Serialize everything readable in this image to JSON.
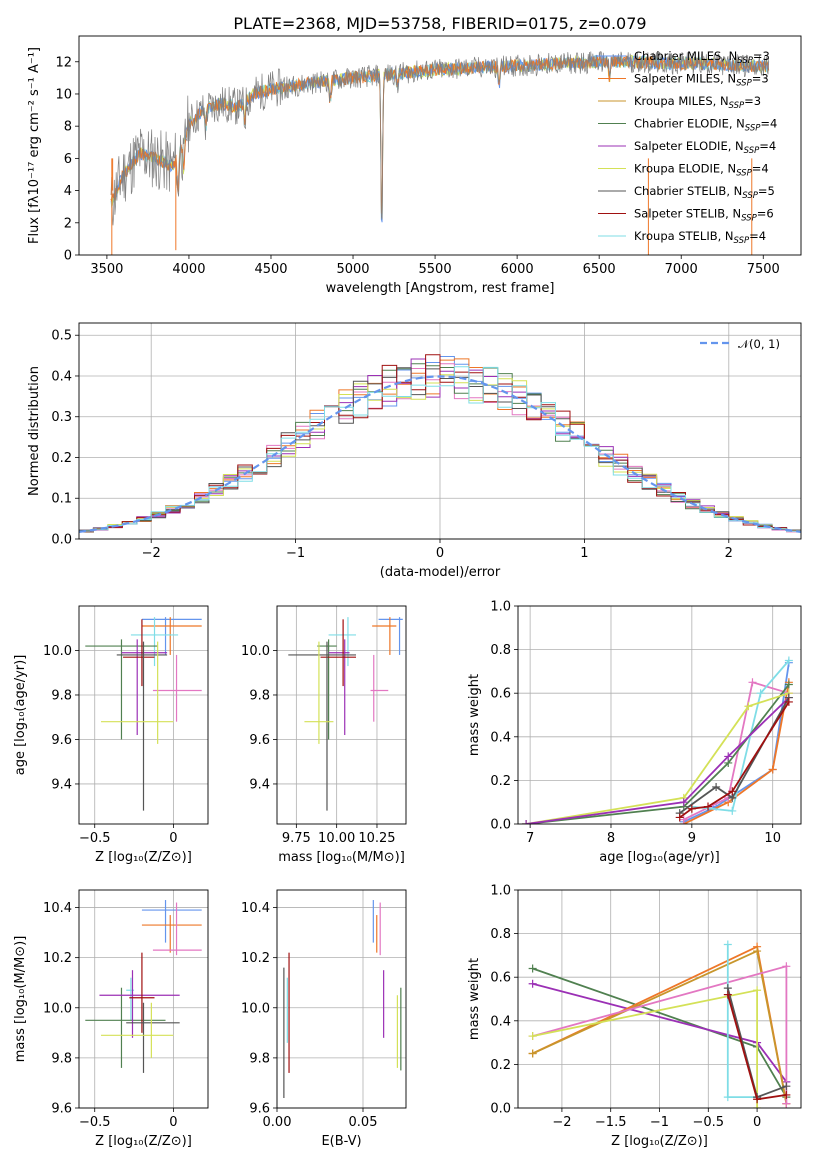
{
  "figure_title": "PLATE=2368, MJD=53758, FIBERID=0175, z=0.079",
  "colors": {
    "Chabrier MILES": "#6495ed",
    "Salpeter MILES": "#ee7728",
    "Kroupa MILES": "#c8962c",
    "Chabrier ELODIE": "#508050",
    "Salpeter ELODIE": "#9b30b5",
    "Kroupa ELODIE": "#d4e157",
    "Chabrier STELIB": "#555555",
    "Salpeter STELIB": "#a01010",
    "Kroupa STELIB": "#7fdde6",
    "pink": "#e377c2",
    "normal_curve": "#6495ed",
    "grid": "#b0b0b0"
  },
  "chart_data": [
    {
      "id": "spectrum",
      "type": "line",
      "xlabel": "wavelength [Angstrom, rest frame]",
      "ylabel": "Flux [fλ10⁻¹⁷ erg cm⁻² s⁻¹ A⁻¹]",
      "xlim": [
        3330,
        7730
      ],
      "ylim": [
        0,
        13.6
      ],
      "xticks": [
        3500,
        4000,
        4500,
        5000,
        5500,
        6000,
        6500,
        7000,
        7500
      ],
      "yticks": [
        0,
        2,
        4,
        6,
        8,
        10,
        12
      ],
      "grid": false,
      "legend_placement": "right",
      "legend": [
        {
          "name": "Chabrier MILES, N",
          "sub": "SSP",
          "suffix": "=3"
        },
        {
          "name": "Salpeter MILES, N",
          "sub": "SSP",
          "suffix": "=3"
        },
        {
          "name": "Kroupa MILES, N",
          "sub": "SSP",
          "suffix": "=3"
        },
        {
          "name": "Chabrier ELODIE, N",
          "sub": "SSP",
          "suffix": "=4"
        },
        {
          "name": "Salpeter ELODIE, N",
          "sub": "SSP",
          "suffix": "=4"
        },
        {
          "name": "Kroupa ELODIE, N",
          "sub": "SSP",
          "suffix": "=4"
        },
        {
          "name": "Chabrier STELIB, N",
          "sub": "SSP",
          "suffix": "=5"
        },
        {
          "name": "Salpeter STELIB, N",
          "sub": "SSP",
          "suffix": "=6"
        },
        {
          "name": "Kroupa STELIB, N",
          "sub": "SSP",
          "suffix": "=4"
        }
      ],
      "continuum": [
        [
          3520,
          3.0
        ],
        [
          3600,
          5.0
        ],
        [
          3700,
          6.3
        ],
        [
          3800,
          6.0
        ],
        [
          3900,
          5.5
        ],
        [
          3950,
          6.6
        ],
        [
          4000,
          8.2
        ],
        [
          4100,
          9.1
        ],
        [
          4200,
          9.4
        ],
        [
          4300,
          9.2
        ],
        [
          4400,
          10.0
        ],
        [
          4500,
          10.3
        ],
        [
          4700,
          10.6
        ],
        [
          4900,
          10.9
        ],
        [
          5100,
          11.1
        ],
        [
          5300,
          11.3
        ],
        [
          5500,
          11.5
        ],
        [
          5700,
          11.6
        ],
        [
          5900,
          11.7
        ],
        [
          6100,
          11.8
        ],
        [
          6300,
          11.9
        ],
        [
          6500,
          12.0
        ],
        [
          6700,
          12.0
        ],
        [
          6900,
          11.9
        ],
        [
          7100,
          11.9
        ],
        [
          7300,
          11.8
        ],
        [
          7550,
          11.7
        ]
      ],
      "absorptions": [
        [
          3933,
          2.5
        ],
        [
          3968,
          2.0
        ],
        [
          4102,
          1.2
        ],
        [
          4340,
          1.2
        ],
        [
          4861,
          1.4
        ],
        [
          5175,
          9.5
        ],
        [
          5270,
          0.8
        ],
        [
          5890,
          1.2
        ],
        [
          6563,
          1.0
        ]
      ]
    },
    {
      "id": "residual-hist",
      "type": "histogram",
      "xlabel": "(data-model)/error",
      "ylabel": "Normed distribution",
      "xlim": [
        -2.5,
        2.5
      ],
      "ylim": [
        0,
        0.53
      ],
      "xticks": [
        -2,
        -1,
        0,
        1,
        2
      ],
      "yticks": [
        0.0,
        0.1,
        0.2,
        0.3,
        0.4,
        0.5
      ],
      "grid": true,
      "bin_width": 0.1,
      "legend_placement": "top-right",
      "legend_label": "𝒩(0, 1)"
    },
    {
      "id": "age-vs-Z",
      "type": "errorbar",
      "xlabel": "Z [log₁₀(Z/Z⊙)]",
      "ylabel": "age  [log₁₀(age/yr)]",
      "xlim": [
        -0.6,
        0.22
      ],
      "ylim": [
        9.22,
        10.2
      ],
      "xticks": [
        -0.5,
        0.0
      ],
      "yticks": [
        9.4,
        9.6,
        9.8,
        10.0
      ],
      "grid": true,
      "points": [
        {
          "c": "Chabrier MILES",
          "x": -0.05,
          "xlo": -0.2,
          "xhi": 0.18,
          "y": 10.14,
          "ylo": 9.98,
          "yhi": 10.15
        },
        {
          "c": "Salpeter MILES",
          "x": -0.02,
          "xlo": -0.2,
          "xhi": 0.18,
          "y": 10.11,
          "ylo": 9.98,
          "yhi": 10.15
        },
        {
          "c": "pink",
          "x": 0.02,
          "xlo": -0.13,
          "xhi": 0.18,
          "y": 9.82,
          "ylo": 9.68,
          "yhi": 9.98
        },
        {
          "c": "Kroupa STELIB",
          "x": -0.12,
          "xlo": -0.27,
          "xhi": 0.03,
          "y": 10.07,
          "ylo": 9.93,
          "yhi": 10.15
        },
        {
          "c": "Chabrier ELODIE",
          "x": -0.33,
          "xlo": -0.56,
          "xhi": -0.1,
          "y": 10.02,
          "ylo": 9.6,
          "yhi": 10.05
        },
        {
          "c": "Salpeter ELODIE",
          "x": -0.23,
          "xlo": -0.33,
          "xhi": -0.04,
          "y": 9.99,
          "ylo": 9.62,
          "yhi": 10.05
        },
        {
          "c": "Salpeter STELIB",
          "x": -0.2,
          "xlo": -0.32,
          "xhi": -0.12,
          "y": 9.97,
          "ylo": 9.84,
          "yhi": 10.14
        },
        {
          "c": "Chabrier STELIB",
          "x": -0.19,
          "xlo": -0.36,
          "xhi": -0.04,
          "y": 9.98,
          "ylo": 9.28,
          "yhi": 10.04
        },
        {
          "c": "Kroupa ELODIE",
          "x": -0.1,
          "xlo": -0.46,
          "xhi": 0.0,
          "y": 9.68,
          "ylo": 9.58,
          "yhi": 10.04
        }
      ]
    },
    {
      "id": "age-vs-mass",
      "type": "errorbar",
      "xlabel": "mass [log₁₀(M/M⊙)]",
      "xlim": [
        9.63,
        10.43
      ],
      "ylim": [
        9.22,
        10.2
      ],
      "xticks": [
        9.75,
        10.0,
        10.25
      ],
      "xtick_labels": [
        "9.75",
        "10.00",
        "10.25"
      ],
      "yticks": [
        9.4,
        9.6,
        9.8,
        10.0
      ],
      "grid": true,
      "points": [
        {
          "c": "Chabrier MILES",
          "x": 10.39,
          "xlo": 10.26,
          "xhi": 10.41,
          "y": 10.14,
          "ylo": 9.98,
          "yhi": 10.15
        },
        {
          "c": "Salpeter MILES",
          "x": 10.33,
          "xlo": 10.22,
          "xhi": 10.37,
          "y": 10.11,
          "ylo": 9.98,
          "yhi": 10.15
        },
        {
          "c": "pink",
          "x": 10.23,
          "xlo": 10.21,
          "xhi": 10.32,
          "y": 9.82,
          "ylo": 9.68,
          "yhi": 9.98
        },
        {
          "c": "Kroupa STELIB",
          "x": 10.07,
          "xlo": 9.95,
          "xhi": 10.12,
          "y": 10.07,
          "ylo": 9.93,
          "yhi": 10.15
        },
        {
          "c": "Chabrier ELODIE",
          "x": 9.95,
          "xlo": 9.88,
          "xhi": 10.0,
          "y": 10.02,
          "ylo": 9.6,
          "yhi": 10.05
        },
        {
          "c": "Salpeter ELODIE",
          "x": 10.05,
          "xlo": 9.95,
          "xhi": 10.08,
          "y": 9.99,
          "ylo": 9.62,
          "yhi": 10.05
        },
        {
          "c": "Salpeter STELIB",
          "x": 10.04,
          "xlo": 9.9,
          "xhi": 10.12,
          "y": 9.97,
          "ylo": 9.84,
          "yhi": 10.14
        },
        {
          "c": "Chabrier STELIB",
          "x": 9.94,
          "xlo": 9.7,
          "xhi": 10.12,
          "y": 9.98,
          "ylo": 9.28,
          "yhi": 10.04
        },
        {
          "c": "Kroupa ELODIE",
          "x": 9.89,
          "xlo": 9.8,
          "xhi": 9.98,
          "y": 9.68,
          "ylo": 9.58,
          "yhi": 10.04
        }
      ]
    },
    {
      "id": "weight-vs-age",
      "type": "line",
      "xlabel": "age  [log₁₀(age/yr)]",
      "ylabel": "mass weight",
      "xlim": [
        6.85,
        10.35
      ],
      "ylim": [
        0,
        1
      ],
      "xticks": [
        7,
        8,
        9,
        10
      ],
      "yticks": [
        0.0,
        0.2,
        0.4,
        0.6,
        0.8,
        1.0
      ],
      "grid": true,
      "series": [
        {
          "c": "Chabrier MILES",
          "x": [
            8.9,
            9.3,
            10.0,
            10.2
          ],
          "y": [
            0.01,
            0.08,
            0.25,
            0.74
          ]
        },
        {
          "c": "Salpeter MILES",
          "x": [
            8.9,
            9.45,
            10.0,
            10.2
          ],
          "y": [
            0.0,
            0.1,
            0.25,
            0.65
          ]
        },
        {
          "c": "pink",
          "x": [
            8.9,
            9.45,
            9.75,
            10.2
          ],
          "y": [
            0.02,
            0.12,
            0.65,
            0.6
          ]
        },
        {
          "c": "Kroupa STELIB",
          "x": [
            9.0,
            9.5,
            9.85,
            10.2
          ],
          "y": [
            0.08,
            0.06,
            0.6,
            0.75
          ]
        },
        {
          "c": "Chabrier ELODIE",
          "x": [
            6.95,
            8.9,
            9.45,
            10.2
          ],
          "y": [
            0.0,
            0.08,
            0.28,
            0.64
          ]
        },
        {
          "c": "Kroupa ELODIE",
          "x": [
            6.95,
            8.9,
            9.7,
            10.2
          ],
          "y": [
            0.0,
            0.12,
            0.54,
            0.6
          ]
        },
        {
          "c": "Salpeter ELODIE",
          "x": [
            6.95,
            8.9,
            9.45,
            10.2
          ],
          "y": [
            0.0,
            0.1,
            0.31,
            0.58
          ]
        },
        {
          "c": "Chabrier STELIB",
          "x": [
            8.85,
            9.3,
            9.5,
            10.2
          ],
          "y": [
            0.05,
            0.17,
            0.12,
            0.58
          ]
        },
        {
          "c": "Salpeter STELIB",
          "x": [
            8.85,
            9.0,
            9.2,
            9.5,
            10.2
          ],
          "y": [
            0.03,
            0.07,
            0.08,
            0.15,
            0.56
          ]
        }
      ]
    },
    {
      "id": "mass-vs-Z",
      "type": "errorbar",
      "xlabel": "Z [log₁₀(Z/Z⊙)]",
      "ylabel": "mass [log₁₀(M/M⊙)]",
      "xlim": [
        -0.6,
        0.22
      ],
      "ylim": [
        9.6,
        10.47
      ],
      "xticks": [
        -0.5,
        0.0
      ],
      "yticks": [
        9.6,
        9.8,
        10.0,
        10.2,
        10.4
      ],
      "grid": true,
      "points": [
        {
          "c": "Chabrier MILES",
          "x": -0.05,
          "xlo": -0.2,
          "xhi": 0.18,
          "y": 10.39,
          "ylo": 10.26,
          "yhi": 10.43
        },
        {
          "c": "Salpeter MILES",
          "x": -0.02,
          "xlo": -0.2,
          "xhi": 0.18,
          "y": 10.33,
          "ylo": 10.22,
          "yhi": 10.37
        },
        {
          "c": "pink",
          "x": 0.02,
          "xlo": -0.13,
          "xhi": 0.18,
          "y": 10.23,
          "ylo": 10.21,
          "yhi": 10.42
        },
        {
          "c": "Kroupa STELIB",
          "x": -0.27,
          "xlo": -0.3,
          "xhi": -0.25,
          "y": 10.07,
          "ylo": 9.95,
          "yhi": 10.12
        },
        {
          "c": "Chabrier ELODIE",
          "x": -0.33,
          "xlo": -0.56,
          "xhi": -0.05,
          "y": 9.95,
          "ylo": 9.76,
          "yhi": 10.08
        },
        {
          "c": "Salpeter ELODIE",
          "x": -0.26,
          "xlo": -0.47,
          "xhi": 0.04,
          "y": 10.05,
          "ylo": 9.88,
          "yhi": 10.15
        },
        {
          "c": "Salpeter STELIB",
          "x": -0.2,
          "xlo": -0.28,
          "xhi": -0.12,
          "y": 10.04,
          "ylo": 9.9,
          "yhi": 10.22
        },
        {
          "c": "Chabrier STELIB",
          "x": -0.19,
          "xlo": -0.3,
          "xhi": 0.04,
          "y": 9.94,
          "ylo": 9.74,
          "yhi": 10.02
        },
        {
          "c": "Kroupa ELODIE",
          "x": -0.14,
          "xlo": -0.46,
          "xhi": 0.0,
          "y": 9.89,
          "ylo": 9.8,
          "yhi": 10.02
        }
      ]
    },
    {
      "id": "mass-vs-ebv",
      "type": "errorbar",
      "xlabel": "E(B-V)",
      "xlim": [
        0.0,
        0.075
      ],
      "ylim": [
        9.6,
        10.47
      ],
      "xticks": [
        0.0,
        0.05
      ],
      "xtick_labels": [
        "0.00",
        "0.05"
      ],
      "yticks": [
        9.6,
        9.8,
        10.0,
        10.2,
        10.4
      ],
      "grid": true,
      "vlines": [
        {
          "c": "Chabrier MILES",
          "x": 0.056,
          "ylo": 10.26,
          "yhi": 10.43
        },
        {
          "c": "Salpeter MILES",
          "x": 0.058,
          "ylo": 10.22,
          "yhi": 10.37
        },
        {
          "c": "pink",
          "x": 0.06,
          "ylo": 10.21,
          "yhi": 10.42
        },
        {
          "c": "Salpeter ELODIE",
          "x": 0.062,
          "ylo": 9.88,
          "yhi": 10.15
        },
        {
          "c": "Kroupa ELODIE",
          "x": 0.07,
          "ylo": 9.76,
          "yhi": 10.05
        },
        {
          "c": "Chabrier ELODIE",
          "x": 0.072,
          "ylo": 9.75,
          "yhi": 10.08
        },
        {
          "c": "Chabrier STELIB",
          "x": 0.004,
          "ylo": 9.64,
          "yhi": 10.16
        },
        {
          "c": "Salpeter STELIB",
          "x": 0.007,
          "ylo": 9.74,
          "yhi": 10.22
        },
        {
          "c": "Kroupa STELIB",
          "x": 0.006,
          "ylo": 9.86,
          "yhi": 10.12
        }
      ]
    },
    {
      "id": "weight-vs-Z",
      "type": "line",
      "xlabel": "Z [log₁₀(Z/Z⊙)]",
      "ylabel": "mass weight",
      "xlim": [
        -2.45,
        0.45
      ],
      "ylim": [
        0,
        1
      ],
      "xticks": [
        -2.0,
        -1.5,
        -1.0,
        -0.5,
        0.0
      ],
      "yticks": [
        0.0,
        0.2,
        0.4,
        0.6,
        0.8,
        1.0
      ],
      "grid": true,
      "series": [
        {
          "c": "Chabrier ELODIE",
          "x": [
            -2.3,
            0.0,
            0.3
          ],
          "y": [
            0.64,
            0.28,
            0.05
          ]
        },
        {
          "c": "Salpeter ELODIE",
          "x": [
            -2.3,
            0.0,
            0.3
          ],
          "y": [
            0.57,
            0.3,
            0.12
          ]
        },
        {
          "c": "Salpeter MILES",
          "x": [
            -2.3,
            0.0,
            0.3
          ],
          "y": [
            0.25,
            0.74,
            0.02
          ]
        },
        {
          "c": "Kroupa MILES",
          "x": [
            -2.3,
            0.0,
            0.3
          ],
          "y": [
            0.25,
            0.72,
            0.02
          ]
        },
        {
          "c": "pink",
          "x": [
            -2.3,
            0.3,
            0.3
          ],
          "y": [
            0.33,
            0.65,
            0.02
          ]
        },
        {
          "c": "Kroupa ELODIE",
          "x": [
            -2.3,
            0.0,
            0.0
          ],
          "y": [
            0.33,
            0.54,
            0.0
          ]
        },
        {
          "c": "Kroupa STELIB",
          "x": [
            -0.3,
            -0.3,
            0.0
          ],
          "y": [
            0.75,
            0.05,
            0.05
          ]
        },
        {
          "c": "Chabrier STELIB",
          "x": [
            -0.3,
            0.0,
            0.3
          ],
          "y": [
            0.55,
            0.05,
            0.1
          ]
        },
        {
          "c": "Salpeter STELIB",
          "x": [
            -0.3,
            0.0,
            0.3
          ],
          "y": [
            0.52,
            0.04,
            0.06
          ]
        }
      ]
    }
  ]
}
